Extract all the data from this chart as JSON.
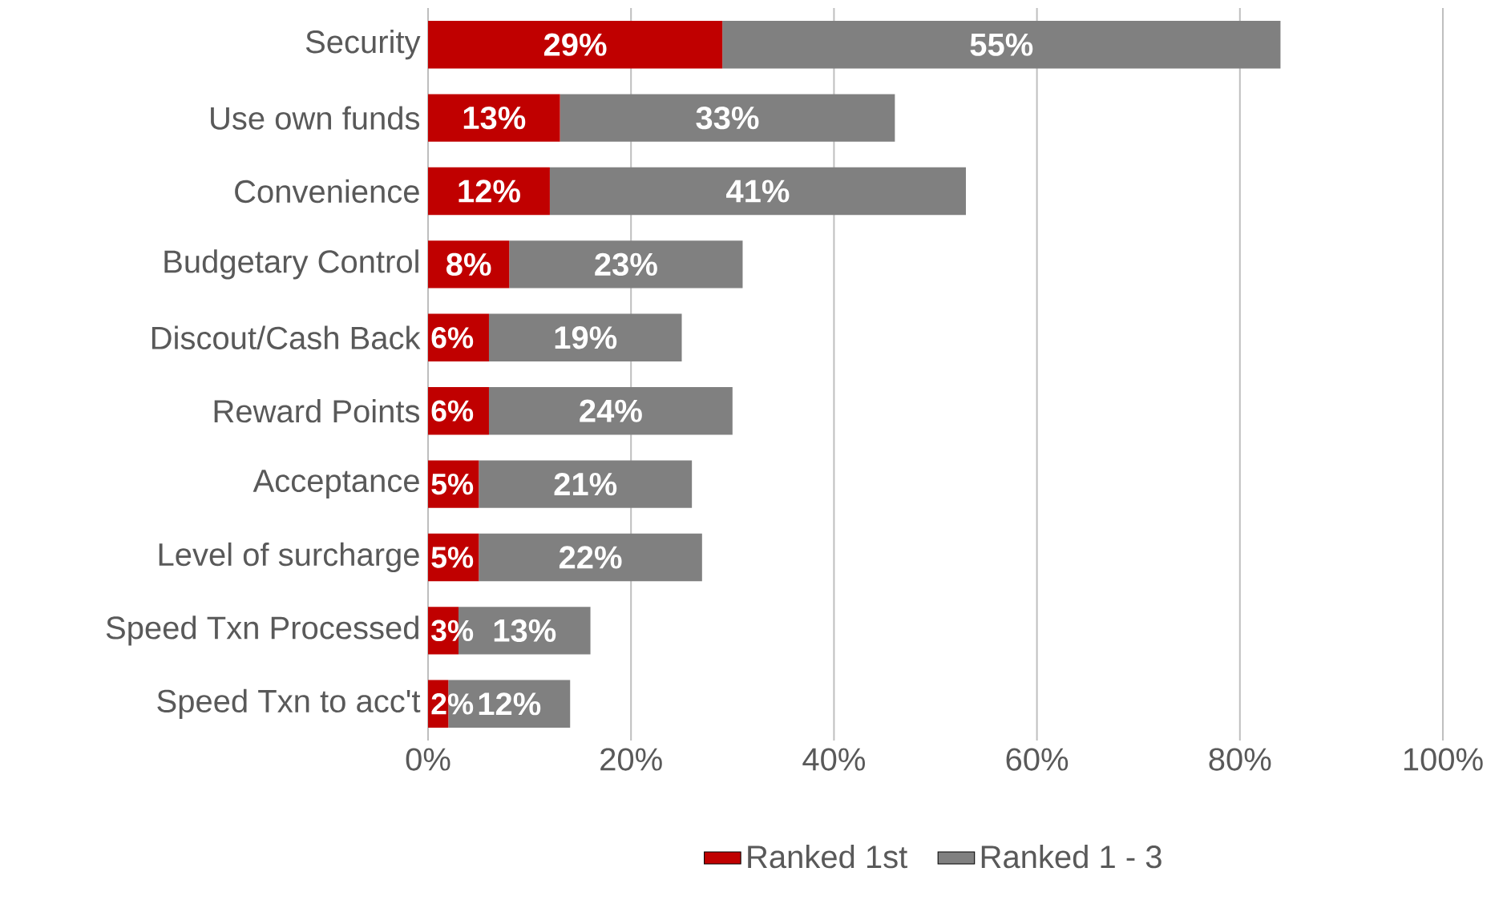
{
  "chart_data": {
    "type": "bar",
    "orientation": "horizontal",
    "stacked": true,
    "categories": [
      "Security",
      "Use own funds",
      "Convenience",
      "Budgetary Control",
      "Discout/Cash Back",
      "Reward Points",
      "Acceptance",
      "Level of surcharge",
      "Speed Txn Processed",
      "Speed Txn to acc't"
    ],
    "series": [
      {
        "name": "Ranked 1st",
        "color": "#c00000",
        "values": [
          29,
          13,
          12,
          8,
          6,
          6,
          5,
          5,
          3,
          2
        ],
        "value_labels": [
          "29%",
          "13%",
          "12%",
          "8%",
          "6%",
          "6%",
          "5%",
          "5%",
          "3%",
          "2%"
        ]
      },
      {
        "name": "Ranked 1 - 3",
        "color": "#808080",
        "values": [
          55,
          33,
          41,
          23,
          19,
          24,
          21,
          22,
          13,
          12
        ],
        "value_labels": [
          "55%",
          "33%",
          "41%",
          "23%",
          "19%",
          "24%",
          "21%",
          "22%",
          "13%",
          "12%"
        ]
      }
    ],
    "xlim": [
      0,
      100
    ],
    "xticks": [
      {
        "value": 0,
        "label": "0%"
      },
      {
        "value": 20,
        "label": "20%"
      },
      {
        "value": 40,
        "label": "40%"
      },
      {
        "value": 60,
        "label": "60%"
      },
      {
        "value": 80,
        "label": "80%"
      },
      {
        "value": 100,
        "label": "100%"
      }
    ],
    "grid": "x",
    "legend": "bottom"
  }
}
